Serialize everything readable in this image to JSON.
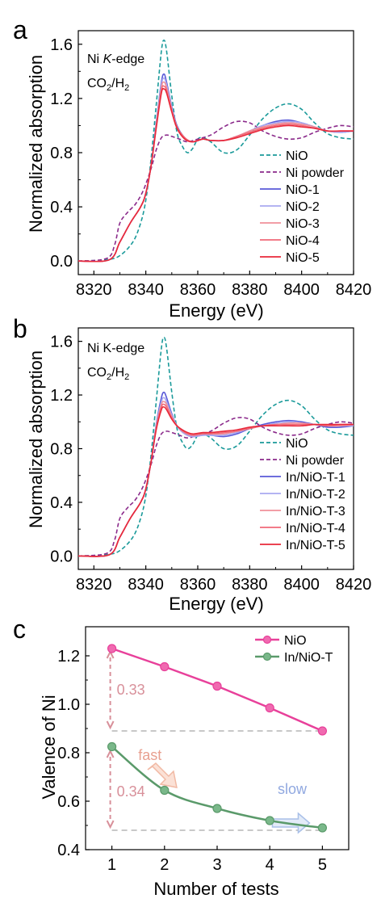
{
  "chart_data": [
    {
      "panel_label": "a",
      "type": "line",
      "annotations": [
        "Ni K-edge",
        "CO2/H2"
      ],
      "annotation_italic": "K",
      "xlabel": "Energy (eV)",
      "ylabel": "Normalized absorption",
      "xlim": [
        8314,
        8420
      ],
      "ylim": [
        -0.1,
        1.7
      ],
      "xticks": [
        8320,
        8340,
        8360,
        8380,
        8400,
        8420
      ],
      "yticks": [
        0.0,
        0.4,
        0.8,
        1.2,
        1.6
      ],
      "ytick_labels": [
        "0.0",
        "0.4",
        "0.8",
        "1.2",
        "1.6"
      ],
      "legend_position": "bottom-right",
      "series": [
        {
          "name": "NiO",
          "color": "#1a9a9a",
          "dash": "dashed",
          "x": [
            8314,
            8325,
            8330,
            8335,
            8338,
            8340,
            8342,
            8344,
            8346,
            8347,
            8348,
            8350,
            8352,
            8354,
            8356,
            8358,
            8360,
            8362,
            8365,
            8370,
            8375,
            8380,
            8385,
            8390,
            8395,
            8400,
            8405,
            8410,
            8415,
            8420
          ],
          "y": [
            0.0,
            0.01,
            0.04,
            0.14,
            0.28,
            0.45,
            0.75,
            1.15,
            1.55,
            1.63,
            1.55,
            1.22,
            0.95,
            0.85,
            0.8,
            0.83,
            0.9,
            0.91,
            0.88,
            0.8,
            0.82,
            0.93,
            1.05,
            1.13,
            1.16,
            1.12,
            1.02,
            0.94,
            0.91,
            0.9
          ]
        },
        {
          "name": "Ni powder",
          "color": "#8b2a8b",
          "dash": "dashed",
          "x": [
            8314,
            8325,
            8328,
            8330,
            8333,
            8336,
            8339,
            8342,
            8344,
            8346,
            8348,
            8350,
            8353,
            8356,
            8360,
            8365,
            8370,
            8375,
            8380,
            8385,
            8390,
            8395,
            8400,
            8405,
            8410,
            8415,
            8420
          ],
          "y": [
            0.0,
            0.02,
            0.12,
            0.28,
            0.36,
            0.42,
            0.52,
            0.68,
            0.82,
            0.91,
            0.93,
            0.92,
            0.9,
            0.88,
            0.9,
            0.93,
            0.99,
            1.03,
            1.02,
            0.96,
            0.92,
            0.9,
            0.91,
            0.95,
            0.98,
            1.0,
            0.99
          ]
        },
        {
          "name": "NiO-1",
          "color": "#5a5ad8",
          "dash": "solid",
          "x": [
            8314,
            8326,
            8330,
            8334,
            8338,
            8340,
            8342,
            8344,
            8346,
            8347,
            8348,
            8350,
            8352,
            8355,
            8358,
            8362,
            8365,
            8370,
            8375,
            8380,
            8385,
            8390,
            8395,
            8400,
            8405,
            8410,
            8415,
            8420
          ],
          "y": [
            0.0,
            0.01,
            0.14,
            0.28,
            0.4,
            0.5,
            0.7,
            1.02,
            1.32,
            1.38,
            1.32,
            1.14,
            1.0,
            0.91,
            0.88,
            0.9,
            0.89,
            0.89,
            0.92,
            0.96,
            1.0,
            1.03,
            1.04,
            1.02,
            0.99,
            0.96,
            0.95,
            0.96
          ]
        },
        {
          "name": "NiO-2",
          "color": "#a9a9f0",
          "dash": "solid",
          "x": [
            8314,
            8326,
            8330,
            8334,
            8338,
            8340,
            8342,
            8344,
            8346,
            8347,
            8348,
            8350,
            8352,
            8355,
            8358,
            8362,
            8365,
            8370,
            8375,
            8380,
            8385,
            8390,
            8395,
            8400,
            8405,
            8410,
            8415,
            8420
          ],
          "y": [
            0.0,
            0.01,
            0.14,
            0.28,
            0.4,
            0.5,
            0.7,
            1.01,
            1.3,
            1.35,
            1.3,
            1.13,
            0.99,
            0.91,
            0.88,
            0.9,
            0.89,
            0.89,
            0.92,
            0.96,
            1.0,
            1.02,
            1.03,
            1.02,
            0.99,
            0.96,
            0.95,
            0.96
          ]
        },
        {
          "name": "NiO-3",
          "color": "#f0909a",
          "dash": "solid",
          "x": [
            8314,
            8326,
            8330,
            8334,
            8338,
            8340,
            8342,
            8344,
            8346,
            8347,
            8348,
            8350,
            8352,
            8355,
            8358,
            8362,
            8365,
            8370,
            8375,
            8380,
            8385,
            8390,
            8395,
            8400,
            8405,
            8410,
            8415,
            8420
          ],
          "y": [
            0.0,
            0.01,
            0.14,
            0.28,
            0.4,
            0.5,
            0.7,
            1.0,
            1.28,
            1.32,
            1.28,
            1.12,
            0.99,
            0.91,
            0.88,
            0.9,
            0.89,
            0.89,
            0.92,
            0.96,
            0.99,
            1.01,
            1.02,
            1.01,
            0.99,
            0.96,
            0.96,
            0.96
          ]
        },
        {
          "name": "NiO-4",
          "color": "#f06a78",
          "dash": "solid",
          "x": [
            8314,
            8326,
            8330,
            8334,
            8338,
            8340,
            8342,
            8344,
            8346,
            8347,
            8348,
            8350,
            8352,
            8355,
            8358,
            8362,
            8365,
            8370,
            8375,
            8380,
            8385,
            8390,
            8395,
            8400,
            8405,
            8410,
            8415,
            8420
          ],
          "y": [
            0.0,
            0.01,
            0.14,
            0.28,
            0.4,
            0.5,
            0.7,
            0.99,
            1.26,
            1.29,
            1.26,
            1.11,
            0.99,
            0.91,
            0.88,
            0.9,
            0.89,
            0.89,
            0.92,
            0.95,
            0.98,
            1.0,
            1.01,
            1.0,
            0.98,
            0.96,
            0.96,
            0.96
          ]
        },
        {
          "name": "NiO-5",
          "color": "#e8283a",
          "dash": "solid",
          "x": [
            8314,
            8326,
            8330,
            8334,
            8338,
            8340,
            8342,
            8344,
            8346,
            8347,
            8348,
            8350,
            8352,
            8355,
            8358,
            8362,
            8365,
            8370,
            8375,
            8380,
            8385,
            8390,
            8395,
            8400,
            8405,
            8410,
            8415,
            8420
          ],
          "y": [
            0.0,
            0.01,
            0.14,
            0.28,
            0.4,
            0.5,
            0.7,
            0.98,
            1.24,
            1.27,
            1.24,
            1.1,
            0.98,
            0.9,
            0.88,
            0.9,
            0.89,
            0.89,
            0.91,
            0.94,
            0.97,
            0.99,
            1.0,
            0.99,
            0.98,
            0.96,
            0.96,
            0.96
          ]
        }
      ]
    },
    {
      "panel_label": "b",
      "type": "line",
      "annotations": [
        "Ni K-edge",
        "CO2/H2"
      ],
      "annotation_italic": "",
      "xlabel": "Energy (eV)",
      "ylabel": "Normalized absorption",
      "xlim": [
        8314,
        8420
      ],
      "ylim": [
        -0.1,
        1.7
      ],
      "xticks": [
        8320,
        8340,
        8360,
        8380,
        8400,
        8420
      ],
      "yticks": [
        0.0,
        0.4,
        0.8,
        1.2,
        1.6
      ],
      "ytick_labels": [
        "0.0",
        "0.4",
        "0.8",
        "1.2",
        "1.6"
      ],
      "legend_position": "bottom-right",
      "series": [
        {
          "name": "NiO",
          "color": "#1a9a9a",
          "dash": "dashed",
          "x": [
            8314,
            8325,
            8330,
            8335,
            8338,
            8340,
            8342,
            8344,
            8346,
            8347,
            8348,
            8350,
            8352,
            8354,
            8356,
            8358,
            8360,
            8362,
            8365,
            8370,
            8375,
            8380,
            8385,
            8390,
            8395,
            8400,
            8405,
            8410,
            8415,
            8420
          ],
          "y": [
            0.0,
            0.01,
            0.04,
            0.14,
            0.28,
            0.45,
            0.75,
            1.15,
            1.55,
            1.63,
            1.55,
            1.22,
            0.95,
            0.85,
            0.8,
            0.83,
            0.9,
            0.91,
            0.88,
            0.8,
            0.82,
            0.93,
            1.05,
            1.13,
            1.16,
            1.12,
            1.02,
            0.94,
            0.91,
            0.9
          ]
        },
        {
          "name": "Ni powder",
          "color": "#8b2a8b",
          "dash": "dashed",
          "x": [
            8314,
            8325,
            8328,
            8330,
            8333,
            8336,
            8339,
            8342,
            8344,
            8346,
            8348,
            8350,
            8353,
            8356,
            8360,
            8365,
            8370,
            8375,
            8380,
            8385,
            8390,
            8395,
            8400,
            8405,
            8410,
            8415,
            8420
          ],
          "y": [
            0.0,
            0.02,
            0.12,
            0.28,
            0.36,
            0.42,
            0.52,
            0.68,
            0.82,
            0.91,
            0.93,
            0.92,
            0.9,
            0.88,
            0.9,
            0.93,
            0.99,
            1.03,
            1.02,
            0.96,
            0.92,
            0.9,
            0.91,
            0.95,
            0.98,
            1.0,
            0.99
          ]
        },
        {
          "name": "In/NiO-T-1",
          "color": "#5a5ad8",
          "dash": "solid",
          "x": [
            8314,
            8326,
            8330,
            8334,
            8338,
            8340,
            8342,
            8344,
            8346,
            8347,
            8348,
            8350,
            8352,
            8355,
            8358,
            8362,
            8365,
            8370,
            8375,
            8380,
            8385,
            8390,
            8395,
            8400,
            8405,
            8410,
            8415,
            8420
          ],
          "y": [
            0.0,
            0.01,
            0.14,
            0.28,
            0.4,
            0.5,
            0.7,
            0.98,
            1.18,
            1.22,
            1.18,
            1.06,
            0.97,
            0.91,
            0.89,
            0.9,
            0.9,
            0.89,
            0.91,
            0.95,
            0.98,
            1.0,
            1.01,
            1.0,
            0.98,
            0.96,
            0.96,
            0.97
          ]
        },
        {
          "name": "In/NiO-T-2",
          "color": "#a9a9f0",
          "dash": "solid",
          "x": [
            8314,
            8326,
            8330,
            8334,
            8338,
            8340,
            8342,
            8344,
            8346,
            8347,
            8348,
            8350,
            8352,
            8355,
            8358,
            8362,
            8365,
            8370,
            8375,
            8380,
            8385,
            8390,
            8395,
            8400,
            8405,
            8410,
            8415,
            8420
          ],
          "y": [
            0.0,
            0.01,
            0.14,
            0.28,
            0.4,
            0.5,
            0.7,
            0.97,
            1.15,
            1.18,
            1.15,
            1.05,
            0.97,
            0.91,
            0.89,
            0.9,
            0.9,
            0.9,
            0.92,
            0.95,
            0.97,
            0.99,
            1.0,
            0.99,
            0.98,
            0.97,
            0.97,
            0.97
          ]
        },
        {
          "name": "In/NiO-T-3",
          "color": "#f0909a",
          "dash": "solid",
          "x": [
            8314,
            8326,
            8330,
            8334,
            8338,
            8340,
            8342,
            8344,
            8346,
            8347,
            8348,
            8350,
            8352,
            8355,
            8358,
            8362,
            8365,
            8370,
            8375,
            8380,
            8385,
            8390,
            8395,
            8400,
            8405,
            8410,
            8415,
            8420
          ],
          "y": [
            0.0,
            0.01,
            0.14,
            0.28,
            0.4,
            0.5,
            0.7,
            0.96,
            1.13,
            1.15,
            1.13,
            1.04,
            0.97,
            0.92,
            0.9,
            0.91,
            0.91,
            0.91,
            0.93,
            0.95,
            0.97,
            0.98,
            0.99,
            0.99,
            0.98,
            0.97,
            0.97,
            0.98
          ]
        },
        {
          "name": "In/NiO-T-4",
          "color": "#f06a78",
          "dash": "solid",
          "x": [
            8314,
            8326,
            8330,
            8334,
            8338,
            8340,
            8342,
            8344,
            8346,
            8347,
            8348,
            8350,
            8352,
            8355,
            8358,
            8362,
            8365,
            8370,
            8375,
            8380,
            8385,
            8390,
            8395,
            8400,
            8405,
            8410,
            8415,
            8420
          ],
          "y": [
            0.0,
            0.01,
            0.14,
            0.28,
            0.4,
            0.5,
            0.7,
            0.95,
            1.11,
            1.13,
            1.11,
            1.03,
            0.97,
            0.92,
            0.9,
            0.91,
            0.91,
            0.92,
            0.93,
            0.95,
            0.97,
            0.98,
            0.98,
            0.98,
            0.98,
            0.97,
            0.98,
            0.98
          ]
        },
        {
          "name": "In/NiO-T-5",
          "color": "#e8283a",
          "dash": "solid",
          "x": [
            8314,
            8326,
            8330,
            8334,
            8338,
            8340,
            8342,
            8344,
            8346,
            8347,
            8348,
            8350,
            8352,
            8355,
            8358,
            8362,
            8365,
            8370,
            8375,
            8380,
            8385,
            8390,
            8395,
            8400,
            8405,
            8410,
            8415,
            8420
          ],
          "y": [
            0.0,
            0.01,
            0.14,
            0.28,
            0.4,
            0.5,
            0.7,
            0.94,
            1.09,
            1.11,
            1.09,
            1.02,
            0.97,
            0.93,
            0.91,
            0.92,
            0.92,
            0.93,
            0.94,
            0.96,
            0.97,
            0.97,
            0.97,
            0.97,
            0.98,
            0.98,
            0.98,
            0.98
          ]
        }
      ]
    },
    {
      "panel_label": "c",
      "type": "line",
      "xlabel": "Number of tests",
      "ylabel": "Valence of Ni",
      "xlim": [
        0.5,
        5.5
      ],
      "ylim": [
        0.4,
        1.32
      ],
      "xticks": [
        1,
        2,
        3,
        4,
        5
      ],
      "yticks": [
        0.4,
        0.6,
        0.8,
        1.0,
        1.2
      ],
      "ytick_labels": [
        "0.4",
        "0.6",
        "0.8",
        "1.0",
        "1.2"
      ],
      "legend_position": "top-right",
      "series": [
        {
          "name": "NiO",
          "color": "#e8409a",
          "marker_fill": "#f06ab0",
          "x": [
            1,
            2,
            3,
            4,
            5
          ],
          "y": [
            1.23,
            1.155,
            1.075,
            0.985,
            0.89
          ],
          "smooth": false
        },
        {
          "name": "In/NiO-T",
          "color": "#5a9a6a",
          "marker_fill": "#7ab88a",
          "x": [
            1,
            2,
            3,
            4,
            5
          ],
          "y": [
            0.825,
            0.645,
            0.57,
            0.52,
            0.49
          ],
          "smooth": true
        }
      ],
      "annotations": [
        {
          "text": "0.33",
          "color": "#d8909a"
        },
        {
          "text": "0.34",
          "color": "#d8909a"
        },
        {
          "text": "fast",
          "color": "#e8a090"
        },
        {
          "text": "slow",
          "color": "#90a8e0"
        }
      ],
      "reference_lines": [
        0.89,
        0.48
      ]
    }
  ]
}
